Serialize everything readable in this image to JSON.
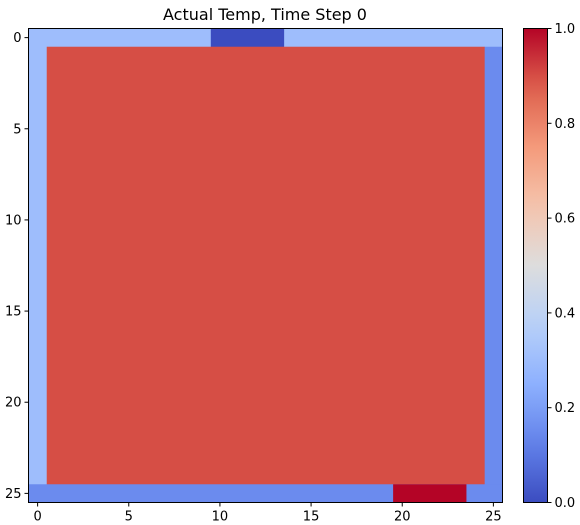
{
  "chart_data": {
    "type": "heatmap",
    "title": "Actual Temp, Time Step 0",
    "xlabel": "",
    "ylabel": "",
    "grid": false,
    "rows": 26,
    "cols": 26,
    "x_ticks": [
      0,
      5,
      10,
      15,
      20,
      25
    ],
    "y_ticks": [
      0,
      5,
      10,
      15,
      20,
      25
    ],
    "x_tick_labels": [
      "0",
      "5",
      "10",
      "15",
      "20",
      "25"
    ],
    "y_tick_labels": [
      "0",
      "5",
      "10",
      "15",
      "20",
      "25"
    ],
    "value_range": [
      0.0,
      1.0
    ],
    "colormap": "coolwarm",
    "colorbar": {
      "ticks": [
        0.0,
        0.2,
        0.4,
        0.6,
        0.8,
        1.0
      ],
      "tick_labels": [
        "0.0",
        "0.2",
        "0.4",
        "0.6",
        "0.8",
        "1.0"
      ]
    },
    "regions": [
      {
        "row_start": 0,
        "row_end": 0,
        "col_start": 0,
        "col_end": 25,
        "value": 0.3
      },
      {
        "row_start": 0,
        "row_end": 0,
        "col_start": 10,
        "col_end": 13,
        "value": 0.0
      },
      {
        "row_start": 1,
        "row_end": 24,
        "col_start": 0,
        "col_end": 0,
        "value": 0.3
      },
      {
        "row_start": 1,
        "row_end": 24,
        "col_start": 25,
        "col_end": 25,
        "value": 0.15
      },
      {
        "row_start": 1,
        "row_end": 24,
        "col_start": 1,
        "col_end": 24,
        "value": 0.9
      },
      {
        "row_start": 25,
        "row_end": 25,
        "col_start": 0,
        "col_end": 25,
        "value": 0.15
      },
      {
        "row_start": 25,
        "row_end": 25,
        "col_start": 20,
        "col_end": 23,
        "value": 1.0
      }
    ]
  }
}
